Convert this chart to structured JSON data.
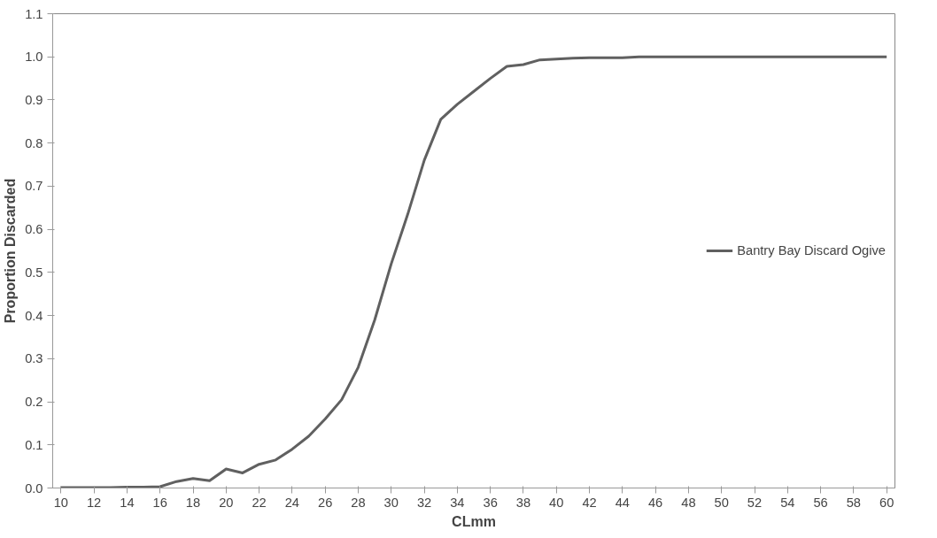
{
  "chart_data": {
    "type": "line",
    "xlabel": "CLmm",
    "ylabel": "Proportion Discarded",
    "x": [
      10,
      11,
      12,
      13,
      14,
      15,
      16,
      17,
      18,
      19,
      20,
      21,
      22,
      23,
      24,
      25,
      26,
      27,
      28,
      29,
      30,
      31,
      32,
      33,
      34,
      35,
      36,
      37,
      38,
      39,
      40,
      41,
      42,
      43,
      44,
      45,
      46,
      47,
      48,
      49,
      50,
      51,
      52,
      53,
      54,
      55,
      56,
      57,
      58,
      59,
      60
    ],
    "series": [
      {
        "name": "Bantry Bay Discard Ogive",
        "color": "#606060",
        "values": [
          0.001,
          0.001,
          0.001,
          0.001,
          0.002,
          0.002,
          0.003,
          0.015,
          0.022,
          0.017,
          0.044,
          0.035,
          0.055,
          0.065,
          0.09,
          0.12,
          0.16,
          0.205,
          0.28,
          0.39,
          0.52,
          0.635,
          0.76,
          0.855,
          0.89,
          0.92,
          0.95,
          0.978,
          0.982,
          0.993,
          0.995,
          0.997,
          0.998,
          0.998,
          0.998,
          1.0,
          1.0,
          1.0,
          1.0,
          1.0,
          1.0,
          1.0,
          1.0,
          1.0,
          1.0,
          1.0,
          1.0,
          1.0,
          1.0,
          1.0,
          1.0
        ]
      }
    ],
    "xlim": [
      9.5,
      60.5
    ],
    "xticks": [
      10,
      12,
      14,
      16,
      18,
      20,
      22,
      24,
      26,
      28,
      30,
      32,
      34,
      36,
      38,
      40,
      42,
      44,
      46,
      48,
      50,
      52,
      54,
      56,
      58,
      60
    ],
    "ylim": [
      0,
      1.1
    ],
    "yticks": [
      {
        "value": 0,
        "label": "0.0"
      },
      {
        "value": 0.1,
        "label": "0.1"
      },
      {
        "value": 0.2,
        "label": "0.2"
      },
      {
        "value": 0.3,
        "label": "0.3"
      },
      {
        "value": 0.4,
        "label": "0.4"
      },
      {
        "value": 0.5,
        "label": "0.5"
      },
      {
        "value": 0.6,
        "label": "0.6"
      },
      {
        "value": 0.7,
        "label": "0.7"
      },
      {
        "value": 0.8,
        "label": "0.8"
      },
      {
        "value": 0.9,
        "label": "0.9"
      },
      {
        "value": 1.0,
        "label": "1.0"
      },
      {
        "value": 1.1,
        "label": "1.1"
      }
    ],
    "legend": "right",
    "marker": "none",
    "line_style": "solid"
  }
}
